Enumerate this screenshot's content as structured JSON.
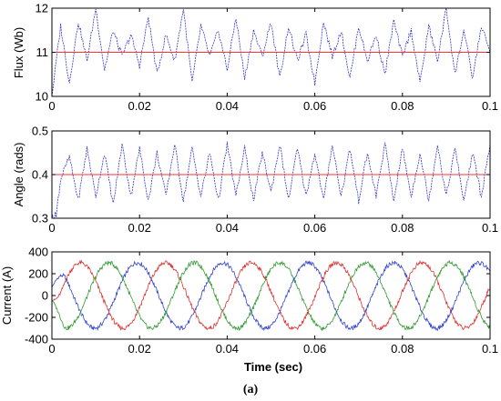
{
  "chart_data": [
    {
      "type": "line",
      "ylabel": "Flux (Wb)",
      "xlabel": "",
      "xlim": [
        0,
        0.1
      ],
      "ylim": [
        10,
        12
      ],
      "xticks": [
        "0",
        "0.02",
        "0.04",
        "0.06",
        "0.08",
        "0.1"
      ],
      "yticks": [
        "10",
        "11",
        "12"
      ],
      "grid": false,
      "series": [
        {
          "color": "#3333cc",
          "style": "dashed",
          "description": "estimated stator flux, hysteresis ripple between 10 and 12",
          "x": [
            0,
            0.002,
            0.004,
            0.006,
            0.008,
            0.01,
            0.012,
            0.014,
            0.016,
            0.018,
            0.02,
            0.022,
            0.024,
            0.026,
            0.028,
            0.03,
            0.032,
            0.034,
            0.036,
            0.038,
            0.04,
            0.042,
            0.044,
            0.046,
            0.048,
            0.05,
            0.052,
            0.054,
            0.056,
            0.058,
            0.06,
            0.062,
            0.064,
            0.066,
            0.068,
            0.07,
            0.072,
            0.074,
            0.076,
            0.078,
            0.08,
            0.082,
            0.084,
            0.086,
            0.088,
            0.09,
            0.092,
            0.094,
            0.096,
            0.098,
            0.1
          ],
          "values": [
            10.0,
            11.6,
            10.3,
            11.7,
            10.8,
            12.0,
            10.6,
            11.5,
            10.9,
            11.4,
            10.7,
            11.8,
            10.5,
            11.4,
            10.8,
            12.0,
            10.3,
            11.6,
            10.9,
            11.5,
            10.6,
            11.8,
            10.4,
            11.5,
            10.9,
            11.7,
            10.4,
            11.6,
            10.8,
            11.4,
            10.3,
            11.7,
            10.9,
            11.5,
            10.4,
            11.6,
            10.8,
            11.4,
            10.5,
            11.7,
            10.9,
            11.5,
            10.3,
            11.6,
            10.8,
            12.0,
            10.5,
            11.5,
            10.4,
            11.6,
            11.0
          ]
        },
        {
          "color": "#ff3333",
          "style": "solid",
          "description": "flux reference",
          "x": [
            0,
            0.1
          ],
          "values": [
            11,
            11
          ]
        }
      ]
    },
    {
      "type": "line",
      "ylabel": "Angle (rads)",
      "xlabel": "",
      "xlim": [
        0,
        0.1
      ],
      "ylim": [
        0.3,
        0.5
      ],
      "xticks": [
        "0",
        "0.02",
        "0.04",
        "0.06",
        "0.08",
        "0.1"
      ],
      "yticks": [
        "0.3",
        "0.4",
        "0.5"
      ],
      "grid": false,
      "series": [
        {
          "color": "#3333cc",
          "style": "dashed",
          "description": "estimated torque angle, ripple mostly between 0.33 and 0.47",
          "x": [
            0,
            0.001,
            0.002,
            0.004,
            0.006,
            0.008,
            0.01,
            0.012,
            0.014,
            0.016,
            0.018,
            0.02,
            0.022,
            0.024,
            0.026,
            0.028,
            0.03,
            0.032,
            0.034,
            0.036,
            0.038,
            0.04,
            0.042,
            0.044,
            0.046,
            0.048,
            0.05,
            0.052,
            0.054,
            0.056,
            0.058,
            0.06,
            0.062,
            0.064,
            0.066,
            0.068,
            0.07,
            0.072,
            0.074,
            0.076,
            0.078,
            0.08,
            0.082,
            0.084,
            0.086,
            0.088,
            0.09,
            0.092,
            0.094,
            0.096,
            0.098,
            0.1
          ],
          "values": [
            0.3,
            0.31,
            0.39,
            0.44,
            0.34,
            0.46,
            0.35,
            0.45,
            0.33,
            0.47,
            0.35,
            0.46,
            0.34,
            0.45,
            0.35,
            0.47,
            0.34,
            0.46,
            0.35,
            0.45,
            0.34,
            0.47,
            0.35,
            0.46,
            0.34,
            0.45,
            0.36,
            0.47,
            0.34,
            0.46,
            0.35,
            0.45,
            0.34,
            0.47,
            0.35,
            0.46,
            0.34,
            0.45,
            0.35,
            0.47,
            0.34,
            0.46,
            0.35,
            0.45,
            0.34,
            0.47,
            0.35,
            0.46,
            0.34,
            0.45,
            0.35,
            0.47
          ]
        },
        {
          "color": "#ff3333",
          "style": "solid",
          "description": "angle reference",
          "x": [
            0,
            0.1
          ],
          "values": [
            0.4,
            0.4
          ]
        }
      ]
    },
    {
      "type": "line",
      "ylabel": "Current (A)",
      "xlabel": "Time (sec)",
      "xlim": [
        0,
        0.1
      ],
      "ylim": [
        -400,
        400
      ],
      "xticks": [
        "0",
        "0.02",
        "0.04",
        "0.06",
        "0.08",
        "0.1"
      ],
      "yticks": [
        "-400",
        "-200",
        "0",
        "200",
        "400"
      ],
      "grid": false,
      "series": [
        {
          "color": "#3344cc",
          "description": "phase current, peak about 300 A, period about 0.02 s",
          "amplitude": 300,
          "period": 0.0195,
          "phase_deg": 90,
          "ripple": 40,
          "x": [
            0.0049,
            0.0147,
            0.0244,
            0.0341,
            0.0439,
            0.0536,
            0.0634,
            0.0731,
            0.0829,
            0.0926
          ],
          "values": [
            300,
            -300,
            300,
            -300,
            300,
            -300,
            300,
            -300,
            300,
            -300
          ]
        },
        {
          "color": "#dd3333",
          "description": "phase current, peak about 300 A, period about 0.02 s",
          "amplitude": 300,
          "period": 0.0195,
          "phase_deg": -30,
          "ripple": 40,
          "x": [
            0.0114,
            0.0211,
            0.0309,
            0.0406,
            0.0504,
            0.0601,
            0.0699,
            0.0796,
            0.0894,
            0.0991
          ],
          "values": [
            300,
            -300,
            300,
            -300,
            300,
            -300,
            300,
            -300,
            300,
            -300
          ]
        },
        {
          "color": "#339933",
          "description": "phase current, peak about 300 A, period about 0.02 s",
          "amplitude": 300,
          "period": 0.0195,
          "phase_deg": 210,
          "ripple": 40,
          "x": [
            0.0016,
            0.0081,
            0.0179,
            0.0276,
            0.0374,
            0.0471,
            0.0569,
            0.0666,
            0.0764,
            0.0861,
            0.0959
          ],
          "values": [
            -300,
            300,
            -300,
            300,
            -300,
            300,
            -300,
            300,
            -300,
            300,
            -300
          ]
        }
      ]
    }
  ],
  "caption": "(a)"
}
